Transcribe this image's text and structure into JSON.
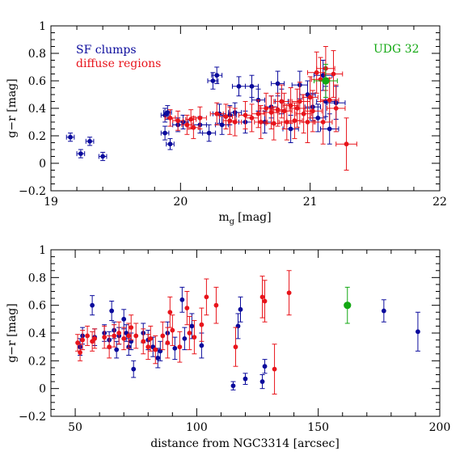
{
  "colors": {
    "sf": "#0a0a9c",
    "diffuse": "#e8141b",
    "udg": "#12a812",
    "axis": "#000000"
  },
  "chart_data": [
    {
      "type": "scatter",
      "xlabel": "m",
      "xlabel_sub": "g",
      "xlabel_unit": "[mag]",
      "ylabel": "g−r [mag]",
      "xlim": [
        19,
        22
      ],
      "ylim": [
        -0.2,
        1
      ],
      "xticks": [
        "19",
        "20",
        "21",
        "22"
      ],
      "yticks": [
        "−0.2",
        "0",
        "0.2",
        "0.4",
        "0.6",
        "0.8",
        "1"
      ],
      "legend": [
        "SF clumps",
        "diffuse regions"
      ],
      "annotation": "UDG 32",
      "series": [
        {
          "name": "SF clumps",
          "color": "#0a0a9c",
          "points": [
            {
              "x": 19.15,
              "y": 0.19,
              "xe": 0.03,
              "ye": 0.03
            },
            {
              "x": 19.23,
              "y": 0.07,
              "xe": 0.03,
              "ye": 0.03
            },
            {
              "x": 19.3,
              "y": 0.16,
              "xe": 0.03,
              "ye": 0.03
            },
            {
              "x": 19.4,
              "y": 0.05,
              "xe": 0.03,
              "ye": 0.03
            },
            {
              "x": 19.88,
              "y": 0.35,
              "xe": 0.03,
              "ye": 0.05
            },
            {
              "x": 19.9,
              "y": 0.37,
              "xe": 0.03,
              "ye": 0.05
            },
            {
              "x": 19.88,
              "y": 0.22,
              "xe": 0.03,
              "ye": 0.05
            },
            {
              "x": 19.92,
              "y": 0.14,
              "xe": 0.03,
              "ye": 0.04
            },
            {
              "x": 19.98,
              "y": 0.28,
              "xe": 0.04,
              "ye": 0.05
            },
            {
              "x": 20.02,
              "y": 0.3,
              "xe": 0.04,
              "ye": 0.05
            },
            {
              "x": 20.15,
              "y": 0.28,
              "xe": 0.05,
              "ye": 0.06
            },
            {
              "x": 20.22,
              "y": 0.22,
              "xe": 0.05,
              "ye": 0.06
            },
            {
              "x": 20.25,
              "y": 0.6,
              "xe": 0.04,
              "ye": 0.06
            },
            {
              "x": 20.28,
              "y": 0.64,
              "xe": 0.04,
              "ye": 0.06
            },
            {
              "x": 20.3,
              "y": 0.36,
              "xe": 0.05,
              "ye": 0.07
            },
            {
              "x": 20.32,
              "y": 0.28,
              "xe": 0.05,
              "ye": 0.07
            },
            {
              "x": 20.38,
              "y": 0.35,
              "xe": 0.05,
              "ye": 0.07
            },
            {
              "x": 20.42,
              "y": 0.37,
              "xe": 0.05,
              "ye": 0.07
            },
            {
              "x": 20.45,
              "y": 0.56,
              "xe": 0.05,
              "ye": 0.07
            },
            {
              "x": 20.5,
              "y": 0.3,
              "xe": 0.05,
              "ye": 0.08
            },
            {
              "x": 20.55,
              "y": 0.56,
              "xe": 0.05,
              "ye": 0.08
            },
            {
              "x": 20.6,
              "y": 0.46,
              "xe": 0.05,
              "ye": 0.08
            },
            {
              "x": 20.65,
              "y": 0.3,
              "xe": 0.05,
              "ye": 0.08
            },
            {
              "x": 20.7,
              "y": 0.41,
              "xe": 0.05,
              "ye": 0.08
            },
            {
              "x": 20.75,
              "y": 0.58,
              "xe": 0.05,
              "ye": 0.09
            },
            {
              "x": 20.78,
              "y": 0.45,
              "xe": 0.05,
              "ye": 0.09
            },
            {
              "x": 20.85,
              "y": 0.25,
              "xe": 0.06,
              "ye": 0.1
            },
            {
              "x": 20.92,
              "y": 0.57,
              "xe": 0.06,
              "ye": 0.1
            },
            {
              "x": 20.98,
              "y": 0.5,
              "xe": 0.06,
              "ye": 0.1
            },
            {
              "x": 21.02,
              "y": 0.41,
              "xe": 0.06,
              "ye": 0.1
            },
            {
              "x": 21.06,
              "y": 0.33,
              "xe": 0.06,
              "ye": 0.1
            },
            {
              "x": 21.1,
              "y": 0.64,
              "xe": 0.07,
              "ye": 0.11
            },
            {
              "x": 21.12,
              "y": 0.45,
              "xe": 0.07,
              "ye": 0.11
            },
            {
              "x": 21.15,
              "y": 0.25,
              "xe": 0.07,
              "ye": 0.11
            },
            {
              "x": 21.2,
              "y": 0.44,
              "xe": 0.07,
              "ye": 0.12
            }
          ]
        },
        {
          "name": "diffuse regions",
          "color": "#e8141b",
          "points": [
            {
              "x": 19.92,
              "y": 0.33,
              "xe": 0.04,
              "ye": 0.06
            },
            {
              "x": 19.98,
              "y": 0.31,
              "xe": 0.04,
              "ye": 0.07
            },
            {
              "x": 20.05,
              "y": 0.28,
              "xe": 0.04,
              "ye": 0.07
            },
            {
              "x": 20.08,
              "y": 0.32,
              "xe": 0.04,
              "ye": 0.07
            },
            {
              "x": 20.1,
              "y": 0.26,
              "xe": 0.04,
              "ye": 0.08
            },
            {
              "x": 20.15,
              "y": 0.33,
              "xe": 0.05,
              "ye": 0.08
            },
            {
              "x": 20.28,
              "y": 0.36,
              "xe": 0.05,
              "ye": 0.08
            },
            {
              "x": 20.35,
              "y": 0.34,
              "xe": 0.05,
              "ye": 0.09
            },
            {
              "x": 20.38,
              "y": 0.31,
              "xe": 0.05,
              "ye": 0.1
            },
            {
              "x": 20.42,
              "y": 0.3,
              "xe": 0.05,
              "ye": 0.1
            },
            {
              "x": 20.5,
              "y": 0.35,
              "xe": 0.05,
              "ye": 0.1
            },
            {
              "x": 20.55,
              "y": 0.33,
              "xe": 0.05,
              "ye": 0.1
            },
            {
              "x": 20.6,
              "y": 0.36,
              "xe": 0.05,
              "ye": 0.1
            },
            {
              "x": 20.62,
              "y": 0.3,
              "xe": 0.05,
              "ye": 0.12
            },
            {
              "x": 20.66,
              "y": 0.4,
              "xe": 0.05,
              "ye": 0.11
            },
            {
              "x": 20.7,
              "y": 0.37,
              "xe": 0.06,
              "ye": 0.12
            },
            {
              "x": 20.72,
              "y": 0.29,
              "xe": 0.06,
              "ye": 0.12
            },
            {
              "x": 20.75,
              "y": 0.39,
              "xe": 0.06,
              "ye": 0.12
            },
            {
              "x": 20.78,
              "y": 0.45,
              "xe": 0.06,
              "ye": 0.12
            },
            {
              "x": 20.8,
              "y": 0.38,
              "xe": 0.06,
              "ye": 0.13
            },
            {
              "x": 20.82,
              "y": 0.3,
              "xe": 0.06,
              "ye": 0.13
            },
            {
              "x": 20.85,
              "y": 0.42,
              "xe": 0.06,
              "ye": 0.13
            },
            {
              "x": 20.88,
              "y": 0.31,
              "xe": 0.06,
              "ye": 0.13
            },
            {
              "x": 20.9,
              "y": 0.4,
              "xe": 0.06,
              "ye": 0.14
            },
            {
              "x": 20.92,
              "y": 0.45,
              "xe": 0.06,
              "ye": 0.14
            },
            {
              "x": 20.95,
              "y": 0.36,
              "xe": 0.06,
              "ye": 0.14
            },
            {
              "x": 20.98,
              "y": 0.3,
              "xe": 0.06,
              "ye": 0.15
            },
            {
              "x": 21.0,
              "y": 0.48,
              "xe": 0.06,
              "ye": 0.15
            },
            {
              "x": 21.02,
              "y": 0.38,
              "xe": 0.07,
              "ye": 0.15
            },
            {
              "x": 21.05,
              "y": 0.66,
              "xe": 0.07,
              "ye": 0.15
            },
            {
              "x": 21.08,
              "y": 0.61,
              "xe": 0.07,
              "ye": 0.16
            },
            {
              "x": 21.1,
              "y": 0.3,
              "xe": 0.07,
              "ye": 0.16
            },
            {
              "x": 21.12,
              "y": 0.69,
              "xe": 0.07,
              "ye": 0.16
            },
            {
              "x": 21.15,
              "y": 0.46,
              "xe": 0.07,
              "ye": 0.16
            },
            {
              "x": 21.18,
              "y": 0.65,
              "xe": 0.07,
              "ye": 0.17
            },
            {
              "x": 21.2,
              "y": 0.4,
              "xe": 0.07,
              "ye": 0.17
            },
            {
              "x": 21.28,
              "y": 0.14,
              "xe": 0.08,
              "ye": 0.19
            }
          ]
        },
        {
          "name": "UDG 32",
          "color": "#12a812",
          "points": [
            {
              "x": 21.12,
              "y": 0.6,
              "xe": 0.09,
              "ye": 0.12
            }
          ]
        }
      ]
    },
    {
      "type": "scatter",
      "xlabel": "distance from NGC3314 [arcsec]",
      "ylabel": "g−r [mag]",
      "xlim": [
        40,
        200
      ],
      "ylim": [
        -0.2,
        1
      ],
      "xticks": [
        "50",
        "100",
        "150",
        "200"
      ],
      "yticks": [
        "−0.2",
        "0",
        "0.2",
        "0.4",
        "0.6",
        "0.8",
        "1"
      ],
      "series": [
        {
          "name": "SF clumps",
          "color": "#0a0a9c",
          "points": [
            {
              "x": 52,
              "y": 0.3,
              "ye": 0.06
            },
            {
              "x": 53,
              "y": 0.38,
              "ye": 0.06
            },
            {
              "x": 57,
              "y": 0.6,
              "ye": 0.07
            },
            {
              "x": 58,
              "y": 0.37,
              "ye": 0.06
            },
            {
              "x": 62,
              "y": 0.4,
              "ye": 0.06
            },
            {
              "x": 64,
              "y": 0.35,
              "ye": 0.06
            },
            {
              "x": 65,
              "y": 0.56,
              "ye": 0.07
            },
            {
              "x": 66,
              "y": 0.42,
              "ye": 0.06
            },
            {
              "x": 67,
              "y": 0.28,
              "ye": 0.06
            },
            {
              "x": 68,
              "y": 0.38,
              "ye": 0.06
            },
            {
              "x": 70,
              "y": 0.5,
              "ye": 0.07
            },
            {
              "x": 71,
              "y": 0.4,
              "ye": 0.06
            },
            {
              "x": 72,
              "y": 0.3,
              "ye": 0.06
            },
            {
              "x": 73,
              "y": 0.34,
              "ye": 0.06
            },
            {
              "x": 74,
              "y": 0.14,
              "ye": 0.06
            },
            {
              "x": 78,
              "y": 0.4,
              "ye": 0.07
            },
            {
              "x": 80,
              "y": 0.35,
              "ye": 0.07
            },
            {
              "x": 82,
              "y": 0.3,
              "ye": 0.07
            },
            {
              "x": 84,
              "y": 0.22,
              "ye": 0.07
            },
            {
              "x": 85,
              "y": 0.27,
              "ye": 0.07
            },
            {
              "x": 88,
              "y": 0.4,
              "ye": 0.08
            },
            {
              "x": 91,
              "y": 0.29,
              "ye": 0.08
            },
            {
              "x": 94,
              "y": 0.64,
              "ye": 0.09
            },
            {
              "x": 95,
              "y": 0.36,
              "ye": 0.08
            },
            {
              "x": 98,
              "y": 0.45,
              "ye": 0.09
            },
            {
              "x": 102,
              "y": 0.31,
              "ye": 0.09
            },
            {
              "x": 115,
              "y": 0.02,
              "ye": 0.03
            },
            {
              "x": 117,
              "y": 0.45,
              "ye": 0.09
            },
            {
              "x": 118,
              "y": 0.57,
              "ye": 0.09
            },
            {
              "x": 120,
              "y": 0.07,
              "ye": 0.04
            },
            {
              "x": 127,
              "y": 0.05,
              "ye": 0.05
            },
            {
              "x": 128,
              "y": 0.16,
              "ye": 0.05
            },
            {
              "x": 177,
              "y": 0.56,
              "ye": 0.08
            },
            {
              "x": 191,
              "y": 0.41,
              "ye": 0.14
            }
          ]
        },
        {
          "name": "diffuse regions",
          "color": "#e8141b",
          "points": [
            {
              "x": 51,
              "y": 0.33,
              "ye": 0.06
            },
            {
              "x": 52,
              "y": 0.26,
              "ye": 0.06
            },
            {
              "x": 53,
              "y": 0.35,
              "ye": 0.07
            },
            {
              "x": 55,
              "y": 0.38,
              "ye": 0.07
            },
            {
              "x": 57,
              "y": 0.34,
              "ye": 0.07
            },
            {
              "x": 58,
              "y": 0.36,
              "ye": 0.07
            },
            {
              "x": 62,
              "y": 0.37,
              "ye": 0.08
            },
            {
              "x": 64,
              "y": 0.3,
              "ye": 0.08
            },
            {
              "x": 66,
              "y": 0.38,
              "ye": 0.08
            },
            {
              "x": 68,
              "y": 0.4,
              "ye": 0.08
            },
            {
              "x": 70,
              "y": 0.36,
              "ye": 0.08
            },
            {
              "x": 72,
              "y": 0.38,
              "ye": 0.09
            },
            {
              "x": 73,
              "y": 0.44,
              "ye": 0.09
            },
            {
              "x": 75,
              "y": 0.38,
              "ye": 0.09
            },
            {
              "x": 78,
              "y": 0.34,
              "ye": 0.09
            },
            {
              "x": 80,
              "y": 0.3,
              "ye": 0.09
            },
            {
              "x": 81,
              "y": 0.36,
              "ye": 0.09
            },
            {
              "x": 83,
              "y": 0.28,
              "ye": 0.1
            },
            {
              "x": 86,
              "y": 0.38,
              "ye": 0.1
            },
            {
              "x": 88,
              "y": 0.33,
              "ye": 0.11
            },
            {
              "x": 89,
              "y": 0.55,
              "ye": 0.11
            },
            {
              "x": 90,
              "y": 0.42,
              "ye": 0.11
            },
            {
              "x": 93,
              "y": 0.3,
              "ye": 0.11
            },
            {
              "x": 96,
              "y": 0.58,
              "ye": 0.12
            },
            {
              "x": 97,
              "y": 0.4,
              "ye": 0.12
            },
            {
              "x": 99,
              "y": 0.37,
              "ye": 0.12
            },
            {
              "x": 102,
              "y": 0.46,
              "ye": 0.12
            },
            {
              "x": 104,
              "y": 0.66,
              "ye": 0.13
            },
            {
              "x": 108,
              "y": 0.6,
              "ye": 0.13
            },
            {
              "x": 116,
              "y": 0.3,
              "ye": 0.14
            },
            {
              "x": 127,
              "y": 0.66,
              "ye": 0.15
            },
            {
              "x": 128,
              "y": 0.63,
              "ye": 0.15
            },
            {
              "x": 132,
              "y": 0.14,
              "ye": 0.18
            },
            {
              "x": 138,
              "y": 0.69,
              "ye": 0.16
            }
          ]
        },
        {
          "name": "UDG 32",
          "color": "#12a812",
          "points": [
            {
              "x": 162,
              "y": 0.6,
              "ye": 0.13
            }
          ]
        }
      ]
    }
  ]
}
